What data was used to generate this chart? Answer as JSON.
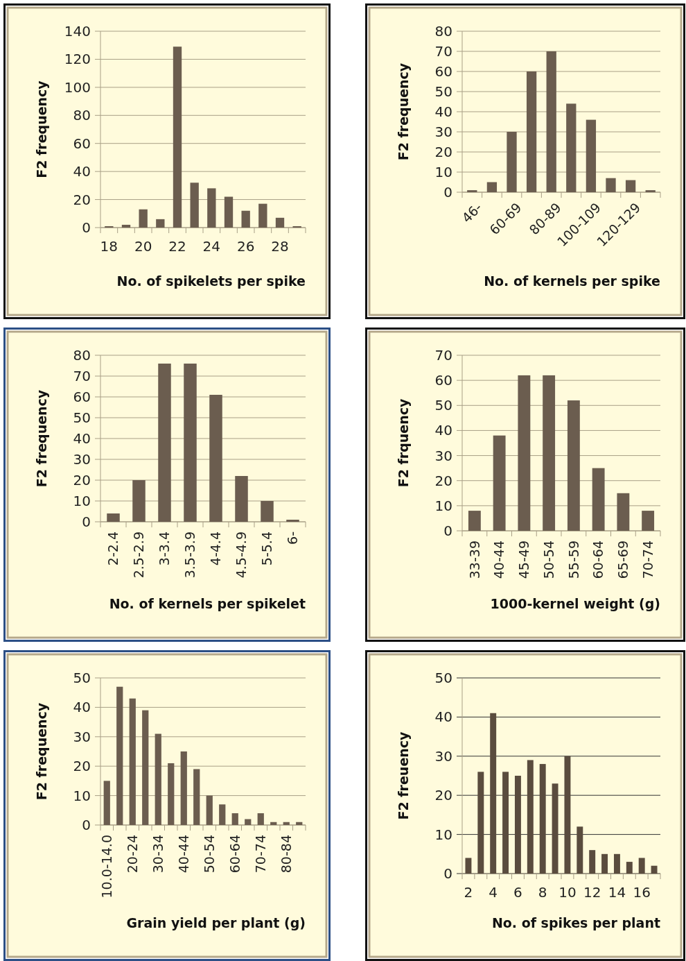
{
  "chart_data": [
    {
      "type": "bar",
      "xlabel": "No. of spikelets per spike",
      "ylabel": "F2 frequency",
      "categories": [
        "18",
        null,
        "20",
        null,
        "22",
        null,
        "24",
        null,
        "26",
        null,
        "28",
        null
      ],
      "values": [
        1,
        2,
        13,
        6,
        129,
        32,
        28,
        22,
        12,
        17,
        7,
        1
      ],
      "color": "#6b5d4f",
      "ylim": [
        0,
        140
      ],
      "yticks": [
        0,
        20,
        40,
        60,
        80,
        100,
        120,
        140
      ],
      "grid": "y"
    },
    {
      "type": "bar",
      "xlabel": "No. of kernels per spike",
      "ylabel": "F2 frequency",
      "categories": [
        "46-",
        null,
        "60-69",
        null,
        "80-89",
        null,
        "100-109",
        null,
        "120-129",
        null
      ],
      "values": [
        1,
        5,
        30,
        60,
        70,
        44,
        36,
        7,
        6,
        1
      ],
      "color": "#6b5d4f",
      "ylim": [
        0,
        80
      ],
      "yticks": [
        0,
        10,
        20,
        30,
        40,
        50,
        60,
        70,
        80
      ],
      "grid": "y"
    },
    {
      "type": "bar",
      "xlabel": "No. of kernels per spikelet",
      "ylabel": "F2 frequency",
      "categories": [
        "2-2.4",
        "2.5-2.9",
        "3-3.4",
        "3.5-3.9",
        "4-4.4",
        "4.5-4.9",
        "5-5.4",
        "6-"
      ],
      "values": [
        4,
        20,
        76,
        76,
        61,
        22,
        10,
        1
      ],
      "color": "#6b5d4f",
      "ylim": [
        0,
        80
      ],
      "yticks": [
        0,
        10,
        20,
        30,
        40,
        50,
        60,
        70,
        80
      ],
      "grid": "y"
    },
    {
      "type": "bar",
      "xlabel": "1000-kernel weight (g)",
      "ylabel": "F2 frquency",
      "categories": [
        "33-39",
        "40-44",
        "45-49",
        "50-54",
        "55-59",
        "60-64",
        "65-69",
        "70-74"
      ],
      "values": [
        8,
        38,
        62,
        62,
        52,
        25,
        15,
        8
      ],
      "color": "#6b5d4f",
      "ylim": [
        0,
        70
      ],
      "yticks": [
        0,
        10,
        20,
        30,
        40,
        50,
        60,
        70
      ],
      "grid": "y"
    },
    {
      "type": "bar",
      "xlabel": "Grain yield per plant (g)",
      "ylabel": "F2 frequency",
      "categories": [
        "10.0-14.0",
        null,
        "20-24",
        null,
        "30-34",
        null,
        "40-44",
        null,
        "50-54",
        null,
        "60-64",
        null,
        "70-74",
        null,
        "80-84",
        null
      ],
      "values": [
        15,
        47,
        43,
        39,
        31,
        21,
        25,
        19,
        10,
        7,
        4,
        2,
        4,
        1,
        1,
        1
      ],
      "color": "#6b5d4f",
      "ylim": [
        0,
        50
      ],
      "yticks": [
        0,
        10,
        20,
        30,
        40,
        50
      ],
      "grid": "y"
    },
    {
      "type": "bar",
      "xlabel": "No. of spikes per plant",
      "ylabel": "F2 freuency",
      "categories": [
        "2",
        null,
        "4",
        null,
        "6",
        null,
        "8",
        null,
        "10",
        null,
        "12",
        null,
        "14",
        null,
        "16",
        null
      ],
      "values": [
        4,
        26,
        41,
        26,
        25,
        29,
        28,
        23,
        30,
        12,
        6,
        5,
        5,
        3,
        4,
        2
      ],
      "color": "#5a4c3e",
      "ylim": [
        0,
        50
      ],
      "yticks": [
        0,
        10,
        20,
        30,
        40,
        50
      ],
      "grid": "y"
    }
  ]
}
